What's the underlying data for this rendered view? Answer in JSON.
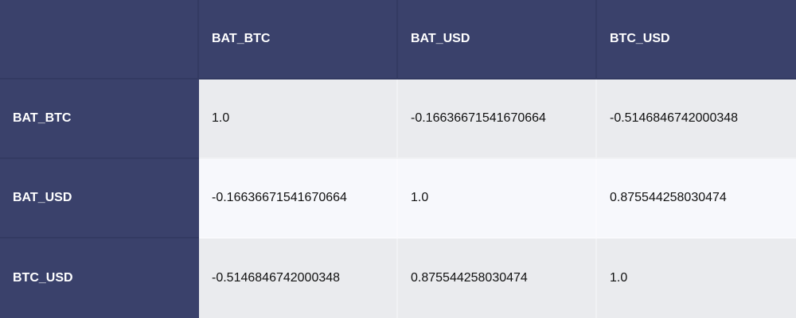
{
  "table": {
    "columns": [
      "BAT_BTC",
      "BAT_USD",
      "BTC_USD"
    ],
    "rows": [
      {
        "label": "BAT_BTC",
        "cells": [
          "1.0",
          "-0.16636671541670664",
          "-0.5146846742000348"
        ]
      },
      {
        "label": "BAT_USD",
        "cells": [
          "-0.16636671541670664",
          "1.0",
          "0.875544258030474"
        ]
      },
      {
        "label": "BTC_USD",
        "cells": [
          "-0.5146846742000348",
          "0.875544258030474",
          "1.0"
        ]
      }
    ]
  },
  "colors": {
    "header_bg": "#3a416b",
    "header_text": "#ffffff",
    "row_odd_bg": "#eaebee",
    "row_even_bg": "#f7f8fc"
  }
}
